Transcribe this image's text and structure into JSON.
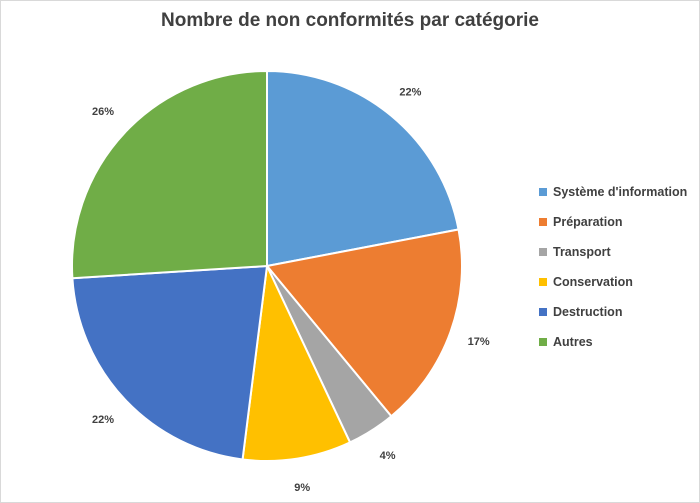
{
  "chart_data": {
    "type": "pie",
    "title": "Nombre de non conformités par catégorie",
    "categories": [
      "Système d'information",
      "Préparation",
      "Transport",
      "Conservation",
      "Destruction",
      "Autres"
    ],
    "values": [
      22,
      17,
      4,
      9,
      22,
      26
    ],
    "labels": [
      "22%",
      "17%",
      "4%",
      "9%",
      "22%",
      "26%"
    ],
    "colors": [
      "#5b9bd5",
      "#ed7d31",
      "#a5a5a5",
      "#ffc000",
      "#4472c4",
      "#70ad47"
    ],
    "legend": "right"
  }
}
